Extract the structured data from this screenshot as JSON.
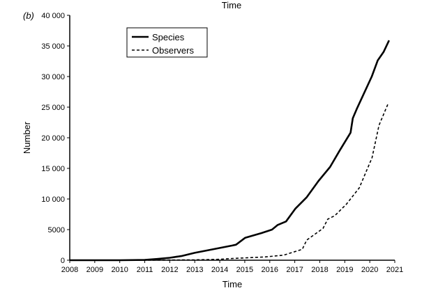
{
  "top_cut_label": "Time",
  "panel_label": "(b)",
  "chart_data": {
    "type": "line",
    "xlabel": "Time",
    "ylabel": "Number",
    "xlim": [
      2008,
      2021
    ],
    "ylim": [
      0,
      40000
    ],
    "xticks": [
      "2008",
      "2009",
      "2010",
      "2011",
      "2012",
      "2013",
      "2014",
      "2015",
      "2016",
      "2017",
      "2018",
      "2019",
      "2020",
      "2021"
    ],
    "yticks": [
      "0",
      "5000",
      "10 000",
      "15 000",
      "20 000",
      "25 000",
      "30 000",
      "35 000",
      "40 000"
    ],
    "grid": false,
    "legend_position": "top-left",
    "series": [
      {
        "name": "Species",
        "style": "solid",
        "x": [
          2008,
          2010,
          2011,
          2011.5,
          2012,
          2012.5,
          2013,
          2013.5,
          2014,
          2014.5,
          2014.65,
          2015.02,
          2015.67,
          2016.09,
          2016.32,
          2016.65,
          2017.02,
          2017.48,
          2017.95,
          2018.41,
          2018.79,
          2019.23,
          2019.32,
          2019.48,
          2020.08,
          2020.32,
          2020.55,
          2020.77
        ],
        "y": [
          0,
          0,
          50,
          200,
          400,
          700,
          1200,
          1600,
          2000,
          2400,
          2530,
          3670,
          4430,
          5000,
          5760,
          6330,
          8400,
          10300,
          12950,
          15230,
          17880,
          20830,
          23180,
          24700,
          30000,
          32650,
          34000,
          35900
        ]
      },
      {
        "name": "Observers",
        "style": "dashed",
        "x": [
          2008,
          2011,
          2012,
          2013,
          2014,
          2014.4,
          2015.81,
          2016.56,
          2017.3,
          2017.48,
          2018.13,
          2018.32,
          2018.6,
          2019.07,
          2019.58,
          2020.09,
          2020.37,
          2020.74
        ],
        "y": [
          0,
          0,
          30,
          60,
          150,
          260,
          530,
          830,
          1780,
          3300,
          5190,
          6700,
          7270,
          9170,
          11820,
          16740,
          22050,
          25650
        ]
      }
    ]
  }
}
